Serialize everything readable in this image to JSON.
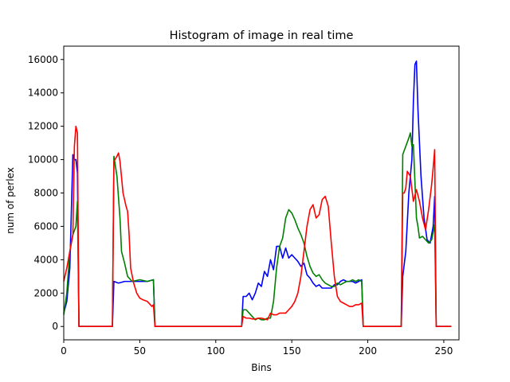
{
  "chart_data": {
    "type": "line",
    "title": "Histogram of image in real time",
    "xlabel": "Bins",
    "ylabel": "num of perlex",
    "xlim": [
      0,
      260
    ],
    "ylim": [
      -800,
      16800
    ],
    "xticks": [
      0,
      50,
      100,
      150,
      200,
      250
    ],
    "yticks": [
      0,
      2000,
      4000,
      6000,
      8000,
      10000,
      12000,
      14000,
      16000
    ],
    "grid": false,
    "legend": "none",
    "series": [
      {
        "color": "#0000ff",
        "points": [
          [
            0,
            800
          ],
          [
            2,
            1500
          ],
          [
            4,
            3500
          ],
          [
            6,
            10300
          ],
          [
            7,
            10000
          ],
          [
            8,
            10000
          ],
          [
            9,
            9200
          ],
          [
            10,
            0
          ],
          [
            32,
            0
          ],
          [
            33,
            2700
          ],
          [
            36,
            2600
          ],
          [
            40,
            2700
          ],
          [
            45,
            2700
          ],
          [
            50,
            2700
          ],
          [
            55,
            2700
          ],
          [
            59,
            2800
          ],
          [
            60,
            0
          ],
          [
            117,
            0
          ],
          [
            118,
            1800
          ],
          [
            120,
            1800
          ],
          [
            122,
            2000
          ],
          [
            124,
            1600
          ],
          [
            126,
            2000
          ],
          [
            128,
            2600
          ],
          [
            130,
            2400
          ],
          [
            132,
            3300
          ],
          [
            134,
            3000
          ],
          [
            136,
            4000
          ],
          [
            138,
            3400
          ],
          [
            140,
            4800
          ],
          [
            142,
            4800
          ],
          [
            144,
            4100
          ],
          [
            146,
            4700
          ],
          [
            148,
            4100
          ],
          [
            150,
            4300
          ],
          [
            152,
            4100
          ],
          [
            154,
            3900
          ],
          [
            156,
            3600
          ],
          [
            158,
            3800
          ],
          [
            160,
            3100
          ],
          [
            162,
            2900
          ],
          [
            164,
            2600
          ],
          [
            166,
            2400
          ],
          [
            168,
            2500
          ],
          [
            170,
            2300
          ],
          [
            172,
            2300
          ],
          [
            174,
            2300
          ],
          [
            176,
            2300
          ],
          [
            178,
            2500
          ],
          [
            180,
            2500
          ],
          [
            182,
            2700
          ],
          [
            184,
            2800
          ],
          [
            186,
            2700
          ],
          [
            188,
            2700
          ],
          [
            190,
            2700
          ],
          [
            192,
            2600
          ],
          [
            194,
            2700
          ],
          [
            196,
            2800
          ],
          [
            197,
            0
          ],
          [
            222,
            0
          ],
          [
            223,
            3000
          ],
          [
            225,
            4500
          ],
          [
            227,
            8000
          ],
          [
            229,
            10000
          ],
          [
            230,
            13500
          ],
          [
            231,
            15700
          ],
          [
            232,
            15900
          ],
          [
            233,
            13000
          ],
          [
            235,
            9000
          ],
          [
            237,
            6500
          ],
          [
            239,
            5200
          ],
          [
            241,
            5000
          ],
          [
            243,
            6000
          ],
          [
            244,
            7800
          ],
          [
            245,
            0
          ],
          [
            255,
            0
          ]
        ]
      },
      {
        "color": "#008000",
        "points": [
          [
            0,
            700
          ],
          [
            2,
            2000
          ],
          [
            4,
            4500
          ],
          [
            6,
            5500
          ],
          [
            8,
            6000
          ],
          [
            9,
            7500
          ],
          [
            10,
            0
          ],
          [
            32,
            0
          ],
          [
            33,
            10200
          ],
          [
            35,
            9000
          ],
          [
            37,
            6500
          ],
          [
            38,
            4500
          ],
          [
            40,
            3800
          ],
          [
            42,
            3000
          ],
          [
            45,
            2700
          ],
          [
            50,
            2800
          ],
          [
            55,
            2700
          ],
          [
            59,
            2800
          ],
          [
            60,
            0
          ],
          [
            117,
            0
          ],
          [
            118,
            1000
          ],
          [
            120,
            1000
          ],
          [
            122,
            800
          ],
          [
            124,
            600
          ],
          [
            126,
            400
          ],
          [
            128,
            500
          ],
          [
            130,
            400
          ],
          [
            132,
            400
          ],
          [
            134,
            500
          ],
          [
            136,
            500
          ],
          [
            138,
            1500
          ],
          [
            140,
            3500
          ],
          [
            142,
            4800
          ],
          [
            144,
            5300
          ],
          [
            146,
            6500
          ],
          [
            148,
            7000
          ],
          [
            150,
            6800
          ],
          [
            152,
            6400
          ],
          [
            154,
            5900
          ],
          [
            156,
            5500
          ],
          [
            158,
            5000
          ],
          [
            160,
            4200
          ],
          [
            162,
            3600
          ],
          [
            164,
            3200
          ],
          [
            166,
            3000
          ],
          [
            168,
            3100
          ],
          [
            170,
            2800
          ],
          [
            172,
            2600
          ],
          [
            174,
            2500
          ],
          [
            176,
            2400
          ],
          [
            178,
            2400
          ],
          [
            180,
            2600
          ],
          [
            182,
            2500
          ],
          [
            184,
            2600
          ],
          [
            186,
            2700
          ],
          [
            188,
            2700
          ],
          [
            190,
            2800
          ],
          [
            192,
            2700
          ],
          [
            194,
            2800
          ],
          [
            196,
            2700
          ],
          [
            197,
            0
          ],
          [
            222,
            0
          ],
          [
            223,
            10300
          ],
          [
            225,
            10800
          ],
          [
            227,
            11300
          ],
          [
            228,
            11600
          ],
          [
            229,
            10800
          ],
          [
            230,
            10900
          ],
          [
            231,
            8700
          ],
          [
            232,
            6500
          ],
          [
            233,
            6000
          ],
          [
            234,
            5300
          ],
          [
            236,
            5400
          ],
          [
            238,
            5200
          ],
          [
            240,
            5000
          ],
          [
            242,
            5200
          ],
          [
            244,
            6100
          ],
          [
            245,
            0
          ],
          [
            255,
            0
          ]
        ]
      },
      {
        "color": "#ff0000",
        "points": [
          [
            0,
            2700
          ],
          [
            2,
            3500
          ],
          [
            4,
            4500
          ],
          [
            6,
            5500
          ],
          [
            7,
            10800
          ],
          [
            8,
            12000
          ],
          [
            9,
            11600
          ],
          [
            10,
            0
          ],
          [
            32,
            0
          ],
          [
            33,
            9900
          ],
          [
            35,
            10200
          ],
          [
            36,
            10400
          ],
          [
            37,
            9900
          ],
          [
            39,
            8000
          ],
          [
            41,
            7200
          ],
          [
            42,
            6900
          ],
          [
            43,
            5500
          ],
          [
            44,
            3500
          ],
          [
            46,
            2600
          ],
          [
            48,
            2000
          ],
          [
            50,
            1700
          ],
          [
            52,
            1600
          ],
          [
            55,
            1500
          ],
          [
            58,
            1200
          ],
          [
            59,
            1300
          ],
          [
            60,
            0
          ],
          [
            117,
            0
          ],
          [
            118,
            600
          ],
          [
            120,
            500
          ],
          [
            122,
            500
          ],
          [
            124,
            450
          ],
          [
            126,
            450
          ],
          [
            128,
            500
          ],
          [
            130,
            500
          ],
          [
            132,
            450
          ],
          [
            134,
            400
          ],
          [
            136,
            800
          ],
          [
            138,
            700
          ],
          [
            140,
            700
          ],
          [
            142,
            800
          ],
          [
            144,
            800
          ],
          [
            146,
            800
          ],
          [
            148,
            1000
          ],
          [
            150,
            1200
          ],
          [
            152,
            1500
          ],
          [
            154,
            2000
          ],
          [
            156,
            3000
          ],
          [
            158,
            4500
          ],
          [
            160,
            6000
          ],
          [
            162,
            7000
          ],
          [
            164,
            7300
          ],
          [
            166,
            6500
          ],
          [
            168,
            6700
          ],
          [
            170,
            7600
          ],
          [
            172,
            7800
          ],
          [
            174,
            7200
          ],
          [
            176,
            5000
          ],
          [
            178,
            3000
          ],
          [
            180,
            1800
          ],
          [
            182,
            1500
          ],
          [
            184,
            1400
          ],
          [
            186,
            1300
          ],
          [
            188,
            1200
          ],
          [
            190,
            1200
          ],
          [
            192,
            1300
          ],
          [
            194,
            1300
          ],
          [
            196,
            1400
          ],
          [
            197,
            0
          ],
          [
            222,
            0
          ],
          [
            223,
            8000
          ],
          [
            224,
            8000
          ],
          [
            225,
            8300
          ],
          [
            226,
            9300
          ],
          [
            228,
            9000
          ],
          [
            230,
            7500
          ],
          [
            232,
            8200
          ],
          [
            234,
            7500
          ],
          [
            236,
            6500
          ],
          [
            238,
            5800
          ],
          [
            240,
            7000
          ],
          [
            242,
            8500
          ],
          [
            243,
            9500
          ],
          [
            244,
            10600
          ],
          [
            245,
            0
          ],
          [
            255,
            0
          ]
        ]
      }
    ]
  }
}
